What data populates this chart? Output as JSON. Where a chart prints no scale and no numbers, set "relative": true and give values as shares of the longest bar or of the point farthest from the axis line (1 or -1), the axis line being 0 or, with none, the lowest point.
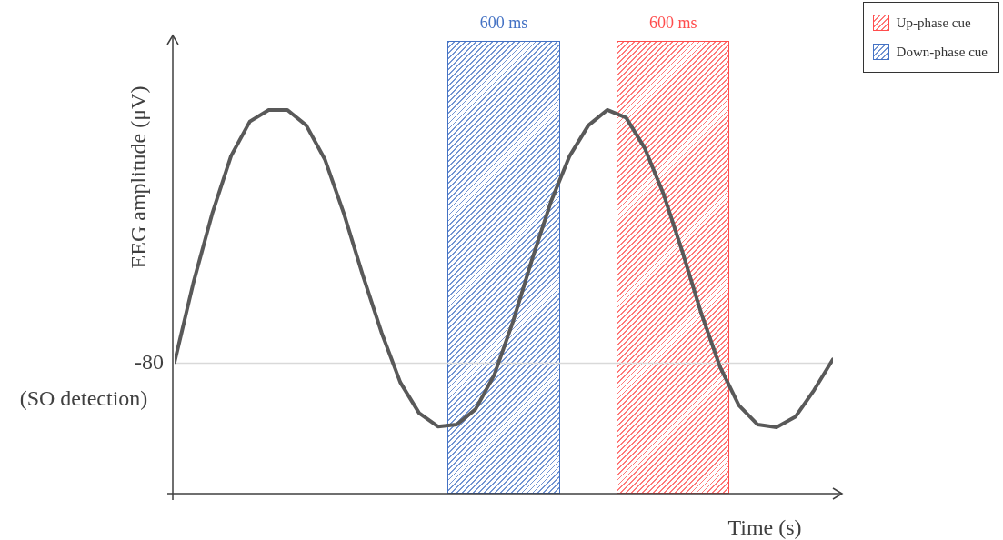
{
  "chart_data": {
    "type": "line",
    "xlabel": "Time (s)",
    "ylabel": "EEG amplitude (μV)",
    "relative": true,
    "categories": [
      null,
      null,
      null,
      null,
      null,
      null,
      null,
      null,
      null,
      null,
      null,
      null,
      null,
      null,
      null,
      null,
      null,
      null,
      null,
      null,
      null,
      null,
      null,
      null,
      null,
      null,
      null,
      null,
      null,
      null,
      null,
      null,
      null,
      null,
      null,
      null
    ],
    "series": [
      {
        "color": "#595959",
        "values": [
          0.343,
          0.55,
          0.73,
          0.88,
          0.97,
          1.0,
          1.0,
          0.96,
          0.87,
          0.73,
          0.57,
          0.42,
          0.29,
          0.21,
          0.175,
          0.18,
          0.22,
          0.31,
          0.45,
          0.61,
          0.76,
          0.88,
          0.96,
          1.0,
          0.98,
          0.9,
          0.78,
          0.63,
          0.47,
          0.33,
          0.23,
          0.18,
          0.173,
          0.2,
          0.27,
          0.35
        ]
      }
    ],
    "marker": "none",
    "line_style": "solid",
    "ref_lines": [
      {
        "axis": "y",
        "value": 0.34,
        "label": "-80 (SO detection)",
        "color": "#d9d9d9"
      }
    ],
    "annotations": [
      "600 ms",
      "600 ms",
      "Up-phase cue",
      "Down-phase cue"
    ]
  }
}
